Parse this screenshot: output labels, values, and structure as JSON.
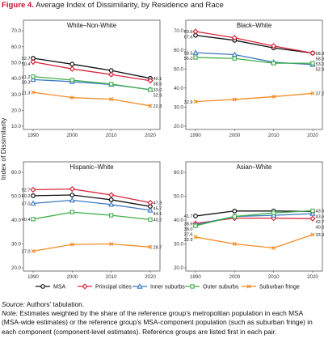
{
  "figure": {
    "label": "Figure 4.",
    "title": "Average Index of Dissimilarity, by Residence and Race"
  },
  "y_axis_label": "Index of Dissimilarity",
  "colors": {
    "MSA": "#111111",
    "Principal cities": "#d7263d",
    "Inner suburbs": "#3a78c2",
    "Outer suburbs": "#3fae49",
    "Suburban fringe": "#f28c28"
  },
  "markers": {
    "MSA": "circle",
    "Principal cities": "diamond",
    "Inner suburbs": "triangle",
    "Outer suburbs": "square",
    "Suburban fringe": "x-mark"
  },
  "chart_data": [
    {
      "type": "line",
      "title": "White–Non-White",
      "x": [
        1990,
        2000,
        2010,
        2020
      ],
      "ylim": [
        10,
        70
      ],
      "yticks": [
        "10.0",
        "20.0",
        "30.0",
        "40.0",
        "50.0",
        "60.0",
        "70.0"
      ],
      "grid": false,
      "series": [
        {
          "name": "MSA",
          "values": [
            52.7,
            49.0,
            45.0,
            40.1
          ],
          "labels": [
            "52.7",
            "",
            "",
            "40.1"
          ]
        },
        {
          "name": "Principal cities",
          "values": [
            50.4,
            46.0,
            42.5,
            38.6
          ],
          "labels": [
            "50.4",
            "",
            "",
            "38.6"
          ]
        },
        {
          "name": "Inner suburbs",
          "values": [
            39.3,
            38.0,
            36.2,
            33.0
          ],
          "labels": [
            "39.3",
            "",
            "",
            "33.0"
          ]
        },
        {
          "name": "Outer suburbs",
          "values": [
            41.2,
            39.0,
            36.5,
            32.9
          ],
          "labels": [
            "41.2",
            "",
            "",
            "32.9"
          ]
        },
        {
          "name": "Suburban fringe",
          "values": [
            31.3,
            28.0,
            27.0,
            22.8
          ],
          "labels": [
            "31.3",
            "",
            "",
            "22.8"
          ]
        }
      ]
    },
    {
      "type": "line",
      "title": "Black–White",
      "x": [
        1990,
        2000,
        2010,
        2020
      ],
      "ylim": [
        20,
        70
      ],
      "yticks": [
        "20.0",
        "30.0",
        "40.0",
        "50.0",
        "60.0",
        "70.0"
      ],
      "grid": false,
      "series": [
        {
          "name": "MSA",
          "values": [
            67.6,
            65.0,
            61.0,
            58.3
          ],
          "labels": [
            "67.6",
            "",
            "",
            "58.3"
          ]
        },
        {
          "name": "Principal cities",
          "values": [
            69.6,
            66.3,
            62.0,
            58.3
          ],
          "labels": [
            "69.6",
            "",
            "",
            "58.3"
          ]
        },
        {
          "name": "Inner suburbs",
          "values": [
            58.5,
            57.5,
            53.5,
            52.3
          ],
          "labels": [
            "58.5",
            "",
            "",
            "52.3"
          ]
        },
        {
          "name": "Outer suburbs",
          "values": [
            56.0,
            55.5,
            53.0,
            53.0
          ],
          "labels": [
            "56.0",
            "",
            "",
            "53.0"
          ]
        },
        {
          "name": "Suburban fringe",
          "values": [
            32.9,
            34.0,
            35.5,
            37.2
          ],
          "labels": [
            "32.9",
            "",
            "",
            "37.2"
          ]
        }
      ]
    },
    {
      "type": "line",
      "title": "Hispanic–White",
      "x": [
        1990,
        2000,
        2010,
        2020
      ],
      "ylim": [
        20,
        60
      ],
      "yticks": [
        "20.0",
        "30.0",
        "40.0",
        "50.0",
        "60.0"
      ],
      "grid": false,
      "series": [
        {
          "name": "MSA",
          "values": [
            50.2,
            50.5,
            48.5,
            45.7
          ],
          "labels": [
            "50.2",
            "",
            "",
            "45.7"
          ]
        },
        {
          "name": "Principal cities",
          "values": [
            52.7,
            53.0,
            50.5,
            47.3
          ],
          "labels": [
            "52.7",
            "",
            "",
            "47.3"
          ]
        },
        {
          "name": "Inner suburbs",
          "values": [
            47.0,
            48.3,
            46.5,
            44.1
          ],
          "labels": [
            "47.0",
            "",
            "",
            "44.1"
          ]
        },
        {
          "name": "Outer suburbs",
          "values": [
            40.4,
            43.3,
            42.0,
            40.2
          ],
          "labels": [
            "40.4",
            "",
            "",
            "40.2"
          ]
        },
        {
          "name": "Suburban fringe",
          "values": [
            27.0,
            29.8,
            30.0,
            28.7
          ],
          "labels": [
            "27.0",
            "",
            "",
            "28.7"
          ]
        }
      ]
    },
    {
      "type": "line",
      "title": "Asian–White",
      "x": [
        1990,
        2000,
        2010,
        2020
      ],
      "ylim": [
        20,
        60
      ],
      "yticks": [
        "20.0",
        "30.0",
        "40.0",
        "50.0",
        "60.0"
      ],
      "grid": false,
      "series": [
        {
          "name": "MSA",
          "values": [
            41.7,
            43.8,
            43.8,
            43.6
          ],
          "labels": [
            "41.7",
            "",
            "",
            "43.6"
          ]
        },
        {
          "name": "Principal cities",
          "values": [
            38.6,
            40.8,
            40.8,
            40.6
          ],
          "labels": [
            "38.6",
            "",
            "",
            "40.6"
          ]
        },
        {
          "name": "Inner suburbs",
          "values": [
            38.0,
            41.5,
            42.0,
            42.7
          ],
          "labels": [
            "38.0",
            "",
            "",
            "42.7"
          ]
        },
        {
          "name": "Outer suburbs",
          "values": [
            37.6,
            41.5,
            43.0,
            43.9
          ],
          "labels": [
            "37.6",
            "",
            "",
            "43.9"
          ]
        },
        {
          "name": "Suburban fringe",
          "values": [
            32.9,
            30.0,
            28.3,
            33.9
          ],
          "labels": [
            "32.9",
            "",
            "",
            "33.9"
          ]
        }
      ]
    }
  ],
  "legend": {
    "placement": "bottom",
    "items": [
      "MSA",
      "Principal cities",
      "Inner suburbs",
      "Outer suburbs",
      "Suburban fringe"
    ]
  },
  "footer": {
    "source_label": "Source:",
    "source_text": "Authors’ tabulation.",
    "note_label": "Note:",
    "note_text": "Estimates weighted by the share of the reference group’s metropolitan population in each MSA (MSA-wide estimates) or the reference group’s MSA-component population (such as suburban fringe) in each component (component-level estimates). Reference groups are listed first in each pair."
  }
}
